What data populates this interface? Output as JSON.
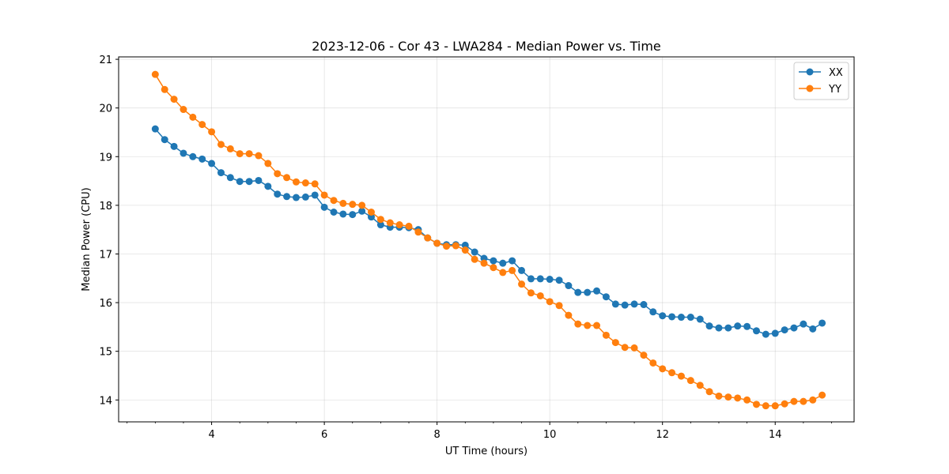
{
  "chart_data": {
    "type": "line",
    "title": "2023-12-06 - Cor 43 - LWA284 - Median Power vs. Time",
    "xlabel": "UT Time (hours)",
    "ylabel": "Median Power (CPU)",
    "xlim": [
      2.35,
      15.4
    ],
    "ylim": [
      13.55,
      21.05
    ],
    "x_ticks": [
      4,
      6,
      8,
      10,
      12,
      14
    ],
    "y_ticks": [
      14,
      15,
      16,
      17,
      18,
      19,
      20,
      21
    ],
    "grid": true,
    "legend_position": "top-right",
    "x": [
      3.0,
      3.167,
      3.333,
      3.5,
      3.667,
      3.833,
      4.0,
      4.167,
      4.333,
      4.5,
      4.667,
      4.833,
      5.0,
      5.167,
      5.333,
      5.5,
      5.667,
      5.833,
      6.0,
      6.167,
      6.333,
      6.5,
      6.667,
      6.833,
      7.0,
      7.167,
      7.333,
      7.5,
      7.667,
      7.833,
      8.0,
      8.167,
      8.333,
      8.5,
      8.667,
      8.833,
      9.0,
      9.167,
      9.333,
      9.5,
      9.667,
      9.833,
      10.0,
      10.167,
      10.333,
      10.5,
      10.667,
      10.833,
      11.0,
      11.167,
      11.333,
      11.5,
      11.667,
      11.833,
      12.0,
      12.167,
      12.333,
      12.5,
      12.667,
      12.833,
      13.0,
      13.167,
      13.333,
      13.5,
      13.667,
      13.833,
      14.0,
      14.167,
      14.333,
      14.5,
      14.667,
      14.833
    ],
    "series": [
      {
        "name": "XX",
        "color": "#1f77b4",
        "values": [
          19.57,
          19.35,
          19.21,
          19.07,
          19.0,
          18.95,
          18.86,
          18.67,
          18.57,
          18.49,
          18.49,
          18.51,
          18.39,
          18.23,
          18.18,
          18.16,
          18.17,
          18.21,
          17.96,
          17.86,
          17.82,
          17.81,
          17.88,
          17.76,
          17.6,
          17.55,
          17.55,
          17.54,
          17.5,
          17.33,
          17.22,
          17.19,
          17.19,
          17.18,
          17.04,
          16.91,
          16.86,
          16.81,
          16.86,
          16.66,
          16.49,
          16.49,
          16.48,
          16.46,
          16.35,
          16.21,
          16.21,
          16.24,
          16.12,
          15.97,
          15.95,
          15.97,
          15.96,
          15.81,
          15.73,
          15.71,
          15.7,
          15.7,
          15.66,
          15.52,
          15.48,
          15.48,
          15.52,
          15.51,
          15.42,
          15.35,
          15.37,
          15.44,
          15.48,
          15.56,
          15.46,
          15.58
        ]
      },
      {
        "name": "YY",
        "color": "#ff7f0e",
        "values": [
          20.69,
          20.38,
          20.18,
          19.97,
          19.81,
          19.66,
          19.51,
          19.25,
          19.16,
          19.06,
          19.06,
          19.02,
          18.86,
          18.65,
          18.57,
          18.48,
          18.46,
          18.44,
          18.21,
          18.1,
          18.04,
          18.02,
          18.0,
          17.86,
          17.71,
          17.64,
          17.6,
          17.57,
          17.45,
          17.33,
          17.22,
          17.16,
          17.17,
          17.08,
          16.89,
          16.81,
          16.72,
          16.62,
          16.66,
          16.38,
          16.2,
          16.14,
          16.02,
          15.94,
          15.74,
          15.56,
          15.53,
          15.53,
          15.33,
          15.18,
          15.08,
          15.07,
          14.92,
          14.76,
          14.64,
          14.56,
          14.49,
          14.4,
          14.3,
          14.17,
          14.08,
          14.06,
          14.04,
          14.0,
          13.91,
          13.88,
          13.88,
          13.92,
          13.97,
          13.97,
          14.0,
          14.1
        ]
      }
    ]
  }
}
